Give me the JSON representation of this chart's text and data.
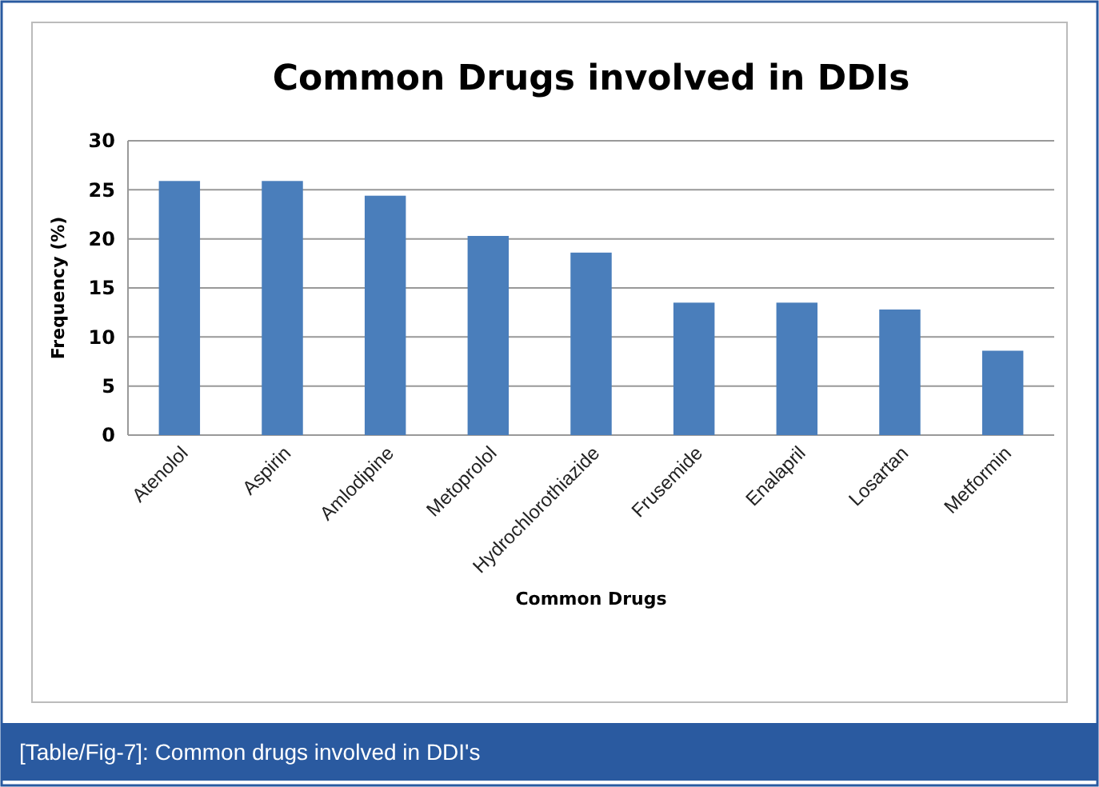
{
  "chart_data": {
    "type": "bar",
    "title": "Common Drugs involved in DDIs",
    "xlabel": "Common Drugs",
    "ylabel": "Frequency (%)",
    "categories": [
      "Atenolol",
      "Aspirin",
      "Amlodipine",
      "Metoprolol",
      "Hydrochlorothiazide",
      "Frusemide",
      "Enalapril",
      "Losartan",
      "Metformin"
    ],
    "values": [
      25.9,
      25.9,
      24.4,
      20.3,
      18.6,
      13.5,
      13.5,
      12.8,
      8.6
    ],
    "color": "#4a7ebb",
    "ylim": [
      0,
      30
    ],
    "yticks": [
      0,
      5,
      10,
      15,
      20,
      25,
      30
    ],
    "grid": "y",
    "annotations": [
      "[Table/Fig-7]: Common drugs involved in DDI's"
    ]
  }
}
